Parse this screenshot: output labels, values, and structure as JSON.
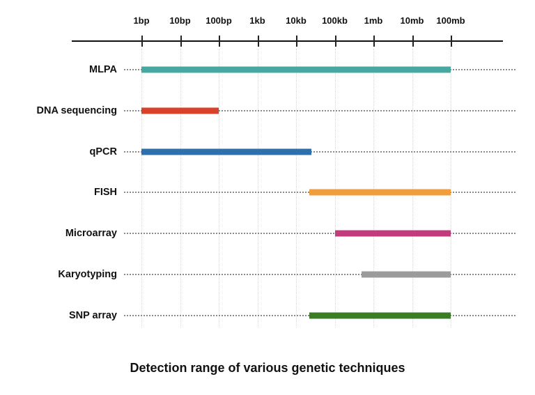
{
  "chart_data": {
    "type": "bar",
    "subtype": "horizontal-range-bars-log-scale",
    "title": "Detection range of various genetic techniques",
    "x_axis": {
      "scale": "log10 of fragment size in base pairs",
      "tick_labels": [
        "1bp",
        "10bp",
        "100bp",
        "1kb",
        "10kb",
        "100kb",
        "1mb",
        "10mb",
        "100mb"
      ],
      "tick_log10_values": [
        0,
        1,
        2,
        3,
        4,
        5,
        6,
        7,
        8
      ],
      "axis_range_log10": [
        0,
        8
      ],
      "axis_position": "top"
    },
    "series": [
      {
        "label": "MLPA",
        "start_log10": 0,
        "end_log10": 8,
        "start_value": "1bp",
        "end_value": "100mb",
        "color": "#47a8a1"
      },
      {
        "label": "DNA sequencing",
        "start_log10": 0,
        "end_log10": 2,
        "start_value": "1bp",
        "end_value": "100bp",
        "color": "#d9412b"
      },
      {
        "label": "qPCR",
        "start_log10": 0,
        "end_log10": 4.4,
        "start_value": "1bp",
        "end_value": "~25kb",
        "color": "#2e6fad"
      },
      {
        "label": "FISH",
        "start_log10": 4.35,
        "end_log10": 8,
        "start_value": "~25kb",
        "end_value": "100mb",
        "color": "#f09d3c"
      },
      {
        "label": "Microarray",
        "start_log10": 5,
        "end_log10": 8,
        "start_value": "100kb",
        "end_value": "100mb",
        "color": "#c23b7c"
      },
      {
        "label": "Karyotyping",
        "start_log10": 5.7,
        "end_log10": 8,
        "start_value": "~500kb",
        "end_value": "100mb",
        "color": "#9b9b9b"
      },
      {
        "label": "SNP array",
        "start_log10": 4.35,
        "end_log10": 8,
        "start_value": "~25kb",
        "end_value": "100mb",
        "color": "#3b7d27"
      }
    ],
    "layout": {
      "grid": "light dotted vertical gridlines at each axis tick",
      "row_guides": "dark dotted horizontal guide line across each technique row",
      "legend": "none",
      "background": "#ffffff"
    }
  }
}
